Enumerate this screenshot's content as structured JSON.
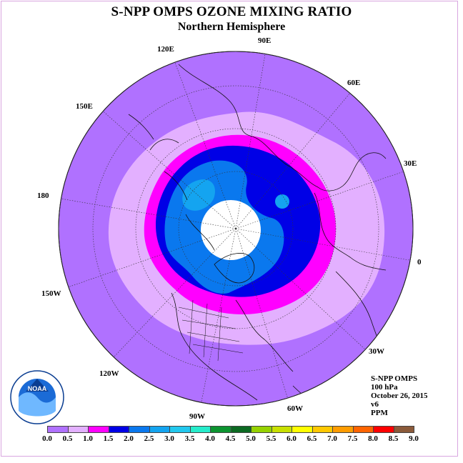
{
  "title": "S-NPP OMPS OZONE MIXING RATIO",
  "subtitle": "Northern Hemisphere",
  "longitude_labels": [
    "90E",
    "60E",
    "30E",
    "0",
    "30W",
    "60W",
    "90W",
    "120W",
    "150W",
    "180",
    "150E",
    "120E"
  ],
  "info": {
    "instrument": "S-NPP OMPS",
    "pressure_level": "100 hPa",
    "date": "October 26, 2015",
    "version": "v6",
    "units": "PPM"
  },
  "logo_text": "NOAA",
  "legend": {
    "ticks": [
      "0.0",
      "0.5",
      "1.0",
      "1.5",
      "2.0",
      "2.5",
      "3.0",
      "3.5",
      "4.0",
      "4.5",
      "5.0",
      "5.5",
      "6.0",
      "6.5",
      "7.0",
      "7.5",
      "8.0",
      "8.5",
      "9.0"
    ],
    "colors": [
      "#b071ff",
      "#e3b0ff",
      "#ff00ff",
      "#0000e6",
      "#0a78ee",
      "#14a4f0",
      "#22c8ee",
      "#26eccb",
      "#0c9430",
      "#0c6a22",
      "#96d200",
      "#c8e000",
      "#ffff00",
      "#ffc800",
      "#ff9c00",
      "#ff6400",
      "#ff0000",
      "#8b5a3a"
    ]
  }
}
